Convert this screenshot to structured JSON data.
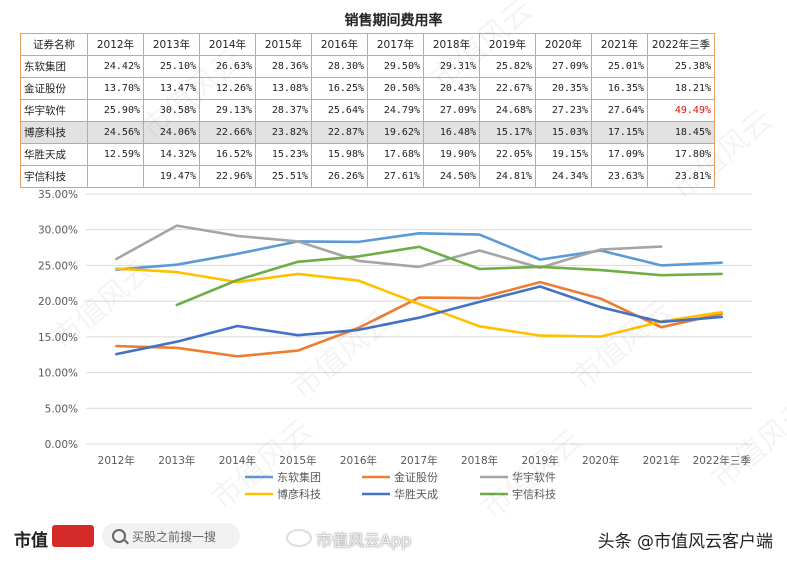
{
  "chart_data": {
    "type": "table+line",
    "title": "销售期间费用率",
    "header_label": "证券名称",
    "categories": [
      "2012年",
      "2013年",
      "2014年",
      "2015年",
      "2016年",
      "2017年",
      "2018年",
      "2019年",
      "2020年",
      "2021年",
      "2022年三季"
    ],
    "series": [
      {
        "name": "东软集团",
        "color": "#5b9bd5",
        "display": [
          "24.42%",
          "25.10%",
          "26.63%",
          "28.36%",
          "28.30%",
          "29.50%",
          "29.31%",
          "25.82%",
          "27.09%",
          "25.01%",
          "25.38%"
        ],
        "values": [
          24.42,
          25.1,
          26.63,
          28.36,
          28.3,
          29.5,
          29.31,
          25.82,
          27.09,
          25.01,
          25.38
        ]
      },
      {
        "name": "金证股份",
        "color": "#ed7d31",
        "display": [
          "13.70%",
          "13.47%",
          "12.26%",
          "13.08%",
          "16.25%",
          "20.50%",
          "20.43%",
          "22.67%",
          "20.35%",
          "16.35%",
          "18.21%"
        ],
        "values": [
          13.7,
          13.47,
          12.26,
          13.08,
          16.25,
          20.5,
          20.43,
          22.67,
          20.35,
          16.35,
          18.21
        ]
      },
      {
        "name": "华宇软件",
        "color": "#a5a5a5",
        "display": [
          "25.90%",
          "30.58%",
          "29.13%",
          "28.37%",
          "25.64%",
          "24.79%",
          "27.09%",
          "24.68%",
          "27.23%",
          "27.64%",
          "49.49%"
        ],
        "values": [
          25.9,
          30.58,
          29.13,
          28.37,
          25.64,
          24.79,
          27.09,
          24.68,
          27.23,
          27.64,
          null
        ],
        "highlight_last_display": true
      },
      {
        "name": "博彦科技",
        "color": "#ffc000",
        "display": [
          "24.56%",
          "24.06%",
          "22.66%",
          "23.82%",
          "22.87%",
          "19.62%",
          "16.48%",
          "15.17%",
          "15.03%",
          "17.15%",
          "18.45%"
        ],
        "values": [
          24.56,
          24.06,
          22.66,
          23.82,
          22.87,
          19.62,
          16.48,
          15.17,
          15.03,
          17.15,
          18.45
        ],
        "row_highlight": true
      },
      {
        "name": "华胜天成",
        "color": "#4472c4",
        "display": [
          "12.59%",
          "14.32%",
          "16.52%",
          "15.23%",
          "15.98%",
          "17.68%",
          "19.90%",
          "22.05%",
          "19.15%",
          "17.09%",
          "17.80%"
        ],
        "values": [
          12.59,
          14.32,
          16.52,
          15.23,
          15.98,
          17.68,
          19.9,
          22.05,
          19.15,
          17.09,
          17.8
        ]
      },
      {
        "name": "宇信科技",
        "color": "#70ad47",
        "display": [
          "",
          "19.47%",
          "22.96%",
          "25.51%",
          "26.26%",
          "27.61%",
          "24.50%",
          "24.81%",
          "24.34%",
          "23.63%",
          "23.81%"
        ],
        "values": [
          null,
          19.47,
          22.96,
          25.51,
          26.26,
          27.61,
          24.5,
          24.81,
          24.34,
          23.63,
          23.81
        ]
      }
    ],
    "y_ticks": [
      "0.00%",
      "5.00%",
      "10.00%",
      "15.00%",
      "20.00%",
      "25.00%",
      "30.00%",
      "35.00%"
    ],
    "ylim": [
      0,
      35
    ],
    "grid": true,
    "legend_position": "bottom"
  },
  "footer": {
    "logo_text": "市值",
    "logo_badge_text": "风云",
    "search_placeholder": "买股之前搜一搜",
    "watermark_center": "市值风云App",
    "author": "头条 @市值风云客户端"
  },
  "watermark_text": "市值风云"
}
